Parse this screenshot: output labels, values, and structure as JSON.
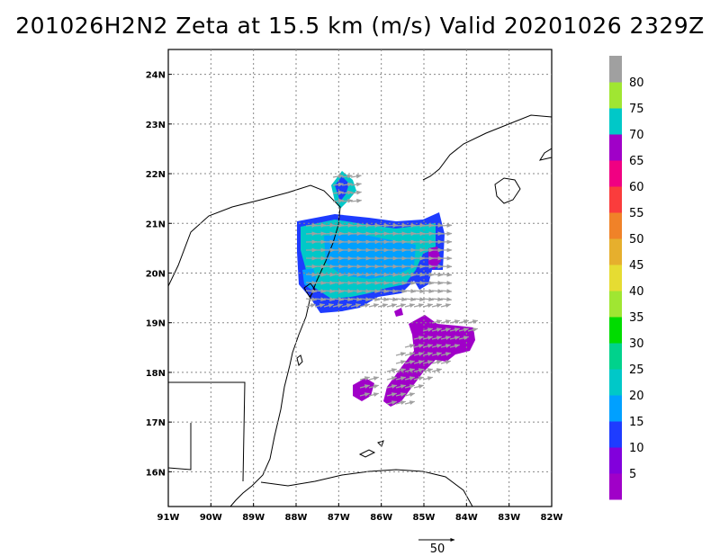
{
  "title": "201026H2N2 Zeta at 15.5 km (m/s) Valid 20201026 2329Z",
  "map": {
    "lon_range": [
      -91,
      -82
    ],
    "lat_range": [
      15.3,
      24.5
    ],
    "lon_ticks": [
      "91W",
      "90W",
      "89W",
      "88W",
      "87W",
      "86W",
      "85W",
      "84W",
      "83W",
      "82W"
    ],
    "lat_ticks": [
      "16N",
      "17N",
      "18N",
      "19N",
      "20N",
      "21N",
      "22N",
      "23N",
      "24N"
    ],
    "grid": true
  },
  "colorbar": {
    "labels": [
      "5",
      "10",
      "15",
      "20",
      "25",
      "30",
      "35",
      "40",
      "45",
      "50",
      "55",
      "60",
      "65",
      "70",
      "75",
      "80"
    ],
    "colors": [
      "#a000c8",
      "#8200dc",
      "#1e3cff",
      "#00a0ff",
      "#00c8c8",
      "#00d28c",
      "#00dc00",
      "#a0e632",
      "#e6dc32",
      "#e6af2d",
      "#f08228",
      "#fa3c3c",
      "#f00082",
      "#a000c8",
      "#00c8c8",
      "#a0e632",
      "#a0a0a0"
    ]
  },
  "wind_vectors": {
    "reference_label": "50",
    "color": "#a0a0a0"
  }
}
